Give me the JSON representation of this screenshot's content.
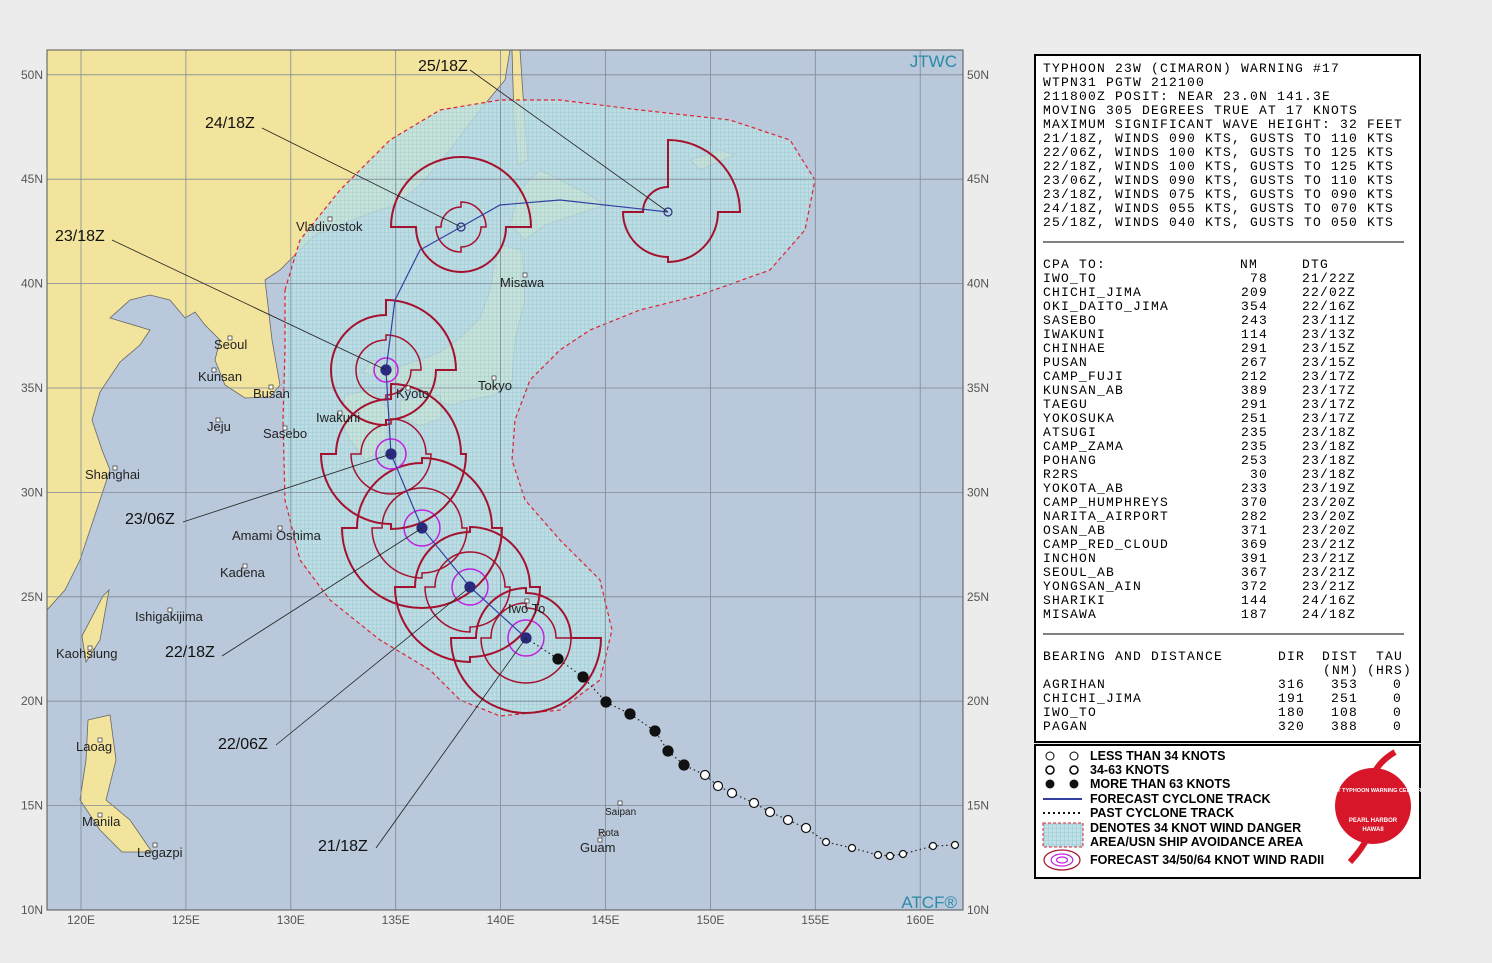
{
  "map": {
    "corner_top": "JTWC",
    "corner_bottom": "ATCF®",
    "lat_labels": [
      "10N",
      "15N",
      "20N",
      "25N",
      "30N",
      "35N",
      "40N",
      "45N",
      "50N"
    ],
    "lon_labels": [
      "120E",
      "125E",
      "130E",
      "135E",
      "140E",
      "145E",
      "150E",
      "155E",
      "160E"
    ],
    "places": [
      "Vladivostok",
      "Misawa",
      "Seoul",
      "Kunsan",
      "Busan",
      "Jeju",
      "Sasebo",
      "Iwakuni",
      "Kyoto",
      "Tokyo",
      "Shanghai",
      "Amami Oshima",
      "Kadena",
      "Ishigakijima",
      "Kaohsiung",
      "Laoag",
      "Manila",
      "Legazpi",
      "Saipan",
      "Rota",
      "Guam",
      "Iwo To"
    ],
    "forecast_times": [
      "25/18Z",
      "24/18Z",
      "23/18Z",
      "23/06Z",
      "22/18Z",
      "22/06Z",
      "21/18Z"
    ]
  },
  "warning": {
    "lines": [
      "TYPHOON 23W (CIMARON) WARNING #17",
      "WTPN31 PGTW 212100",
      "211800Z POSIT: NEAR 23.0N 141.3E",
      "MOVING 305 DEGREES TRUE AT 17 KNOTS",
      "MAXIMUM SIGNIFICANT WAVE HEIGHT: 32 FEET",
      "21/18Z, WINDS 090 KTS, GUSTS TO 110 KTS",
      "22/06Z, WINDS 100 KTS, GUSTS TO 125 KTS",
      "22/18Z, WINDS 100 KTS, GUSTS TO 125 KTS",
      "23/06Z, WINDS 090 KTS, GUSTS TO 110 KTS",
      "23/18Z, WINDS 075 KTS, GUSTS TO 090 KTS",
      "24/18Z, WINDS 055 KTS, GUSTS TO 070 KTS",
      "25/18Z, WINDS 040 KTS, GUSTS TO 050 KTS"
    ]
  },
  "cpa": {
    "header": [
      "CPA TO:",
      "NM",
      "DTG"
    ],
    "rows": [
      [
        "IWO_TO",
        "78",
        "21/22Z"
      ],
      [
        "CHICHI_JIMA",
        "209",
        "22/02Z"
      ],
      [
        "OKI_DAITO_JIMA",
        "354",
        "22/16Z"
      ],
      [
        "SASEBO",
        "243",
        "23/11Z"
      ],
      [
        "IWAKUNI",
        "114",
        "23/13Z"
      ],
      [
        "CHINHAE",
        "291",
        "23/15Z"
      ],
      [
        "PUSAN",
        "267",
        "23/15Z"
      ],
      [
        "CAMP_FUJI",
        "212",
        "23/17Z"
      ],
      [
        "KUNSAN_AB",
        "389",
        "23/17Z"
      ],
      [
        "TAEGU",
        "291",
        "23/17Z"
      ],
      [
        "YOKOSUKA",
        "251",
        "23/17Z"
      ],
      [
        "ATSUGI",
        "235",
        "23/18Z"
      ],
      [
        "CAMP_ZAMA",
        "235",
        "23/18Z"
      ],
      [
        "POHANG",
        "253",
        "23/18Z"
      ],
      [
        "R2RS",
        "30",
        "23/18Z"
      ],
      [
        "YOKOTA_AB",
        "233",
        "23/19Z"
      ],
      [
        "CAMP_HUMPHREYS",
        "370",
        "23/20Z"
      ],
      [
        "NARITA_AIRPORT",
        "282",
        "23/20Z"
      ],
      [
        "OSAN_AB",
        "371",
        "23/20Z"
      ],
      [
        "CAMP_RED_CLOUD",
        "369",
        "23/21Z"
      ],
      [
        "INCHON",
        "391",
        "23/21Z"
      ],
      [
        "SEOUL_AB",
        "367",
        "23/21Z"
      ],
      [
        "YONGSAN_AIN",
        "372",
        "23/21Z"
      ],
      [
        "SHARIKI",
        "144",
        "24/16Z"
      ],
      [
        "MISAWA",
        "187",
        "24/18Z"
      ]
    ]
  },
  "bearing": {
    "title": "BEARING AND DISTANCE",
    "header": [
      "DIR",
      "DIST",
      "TAU"
    ],
    "units": [
      "(NM)",
      "(HRS)"
    ],
    "rows": [
      [
        "AGRIHAN",
        "316",
        "353",
        "0"
      ],
      [
        "CHICHI_JIMA",
        "191",
        "251",
        "0"
      ],
      [
        "IWO_TO",
        "180",
        "108",
        "0"
      ],
      [
        "PAGAN",
        "320",
        "388",
        "0"
      ]
    ]
  },
  "legend": {
    "items": [
      "LESS THAN 34 KNOTS",
      "34-63 KNOTS",
      "MORE THAN 63 KNOTS",
      "FORECAST CYCLONE TRACK",
      "PAST CYCLONE TRACK",
      "DENOTES 34 KNOT WIND DANGER",
      "AREA/USN SHIP AVOIDANCE AREA",
      "FORECAST 34/50/64 KNOT WIND RADII"
    ],
    "logo": [
      "JOINT TYPHOON WARNING CENTER",
      "PEARL HARBOR",
      "HAWAII"
    ]
  }
}
